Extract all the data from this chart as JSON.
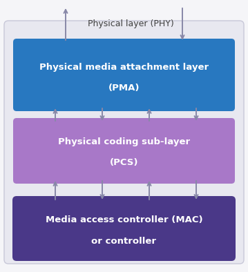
{
  "bg_color": "#f5f5f8",
  "outer_facecolor": "#e8e8f0",
  "outer_edgecolor": "#c8c8d8",
  "pma_color": "#2878c0",
  "pcs_color": "#a878c8",
  "mac_color": "#4a3888",
  "text_white": "#ffffff",
  "text_dark": "#404040",
  "arrow_color": "#8888a8",
  "phy_label": "Physical layer (PHY)",
  "pma_line1": "Physical media attachment layer",
  "pma_line2": "(PMA)",
  "pcs_line1": "Physical coding sub-layer",
  "pcs_line2": "(PCS)",
  "mac_line1": "Media access controller (MAC)",
  "mac_line2": "or controller",
  "fig_width": 3.59,
  "fig_height": 3.94,
  "dpi": 100
}
